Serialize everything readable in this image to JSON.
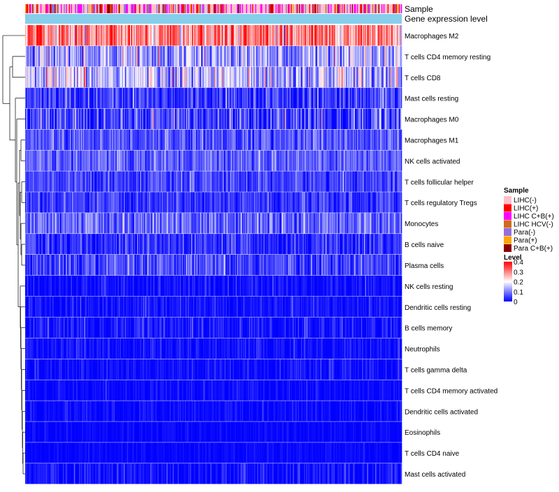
{
  "chart_data": {
    "type": "heatmap",
    "annotation_tracks": [
      "Sample",
      "Gene expression level"
    ],
    "rows": [
      {
        "label": "Macrophages M2",
        "mean": 0.3,
        "sd": 0.07
      },
      {
        "label": "T cells CD4 memory resting",
        "mean": 0.12,
        "sd": 0.06
      },
      {
        "label": "T cells CD8",
        "mean": 0.15,
        "sd": 0.07
      },
      {
        "label": "Mast cells resting",
        "mean": 0.045,
        "sd": 0.04
      },
      {
        "label": "Macrophages M0",
        "mean": 0.045,
        "sd": 0.06
      },
      {
        "label": "Macrophages M1",
        "mean": 0.065,
        "sd": 0.035
      },
      {
        "label": "NK cells activated",
        "mean": 0.075,
        "sd": 0.035
      },
      {
        "label": "T cells follicular helper",
        "mean": 0.05,
        "sd": 0.03
      },
      {
        "label": "T cells regulatory  Tregs",
        "mean": 0.04,
        "sd": 0.03
      },
      {
        "label": "Monocytes",
        "mean": 0.08,
        "sd": 0.04
      },
      {
        "label": "B cells naive",
        "mean": 0.035,
        "sd": 0.035
      },
      {
        "label": "Plasma cells",
        "mean": 0.05,
        "sd": 0.04
      },
      {
        "label": "NK cells resting",
        "mean": 0.012,
        "sd": 0.02
      },
      {
        "label": "Dendritic cells resting",
        "mean": 0.012,
        "sd": 0.02
      },
      {
        "label": "B cells memory",
        "mean": 0.015,
        "sd": 0.025
      },
      {
        "label": "Neutrophils",
        "mean": 0.01,
        "sd": 0.02
      },
      {
        "label": "T cells gamma delta",
        "mean": 0.008,
        "sd": 0.02
      },
      {
        "label": "T cells CD4 memory activated",
        "mean": 0.005,
        "sd": 0.015
      },
      {
        "label": "Dendritic cells activated",
        "mean": 0.005,
        "sd": 0.015
      },
      {
        "label": "Eosinophils",
        "mean": 0.003,
        "sd": 0.01
      },
      {
        "label": "T cells CD4 naive",
        "mean": 0.003,
        "sd": 0.01
      },
      {
        "label": "Mast cells activated",
        "mean": 0.012,
        "sd": 0.025
      }
    ],
    "n_samples": 370,
    "color_scale": {
      "min": 0,
      "max": 0.4,
      "stops": [
        "#0000ff",
        "#ffffff",
        "#ff0000"
      ],
      "mid": 0.2
    },
    "legend_sample": {
      "title": "Sample",
      "items": [
        {
          "label": "LIHC(-)",
          "color": "#ffc0cb"
        },
        {
          "label": "LIHC(+)",
          "color": "#ff0000"
        },
        {
          "label": "LIHC C+B(+)",
          "color": "#ff00ff"
        },
        {
          "label": "LIHC HCV(-)",
          "color": "#d2691e"
        },
        {
          "label": "Para(-)",
          "color": "#9370db"
        },
        {
          "label": "Para(+)",
          "color": "#ffa500"
        },
        {
          "label": "Para C+B(+)",
          "color": "#8b0000"
        }
      ]
    },
    "legend_level": {
      "title": "Level",
      "ticks": [
        "0.4",
        "0.3",
        "0.2",
        "0.1",
        "0"
      ],
      "tick_values": [
        0.4,
        0.3,
        0.2,
        0.1,
        0
      ]
    },
    "gene_expression_color": "#87ceeb",
    "legend_position": "right"
  }
}
